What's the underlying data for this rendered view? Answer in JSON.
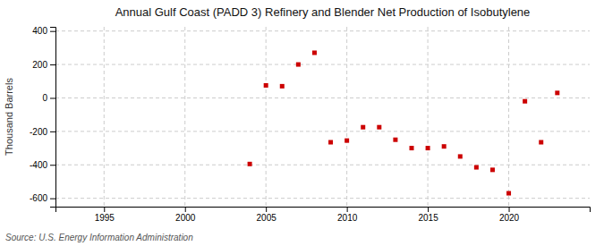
{
  "chart_data": {
    "type": "scatter",
    "title": "Annual Gulf Coast (PADD 3) Refinery and Blender Net Production of Isobutylene",
    "ylabel": "Thousand Barrels",
    "annotations": [
      "Source: U.S. Energy Information Administration"
    ],
    "x": [
      2004,
      2005,
      2006,
      2007,
      2008,
      2009,
      2010,
      2011,
      2012,
      2013,
      2014,
      2015,
      2016,
      2017,
      2018,
      2019,
      2020,
      2021,
      2022,
      2023
    ],
    "values": [
      -395,
      75,
      70,
      200,
      270,
      -265,
      -255,
      -175,
      -175,
      -250,
      -300,
      -300,
      -290,
      -350,
      -415,
      -430,
      -570,
      -20,
      -265,
      30
    ],
    "color": "#cc0000",
    "marker": "square",
    "xlim": [
      1992,
      2025
    ],
    "ylim": [
      -650,
      425
    ],
    "xticks": [
      1995,
      2000,
      2005,
      2010,
      2015,
      2020
    ],
    "yticks": [
      -600,
      -400,
      -200,
      0,
      200,
      400
    ],
    "grid": true
  }
}
